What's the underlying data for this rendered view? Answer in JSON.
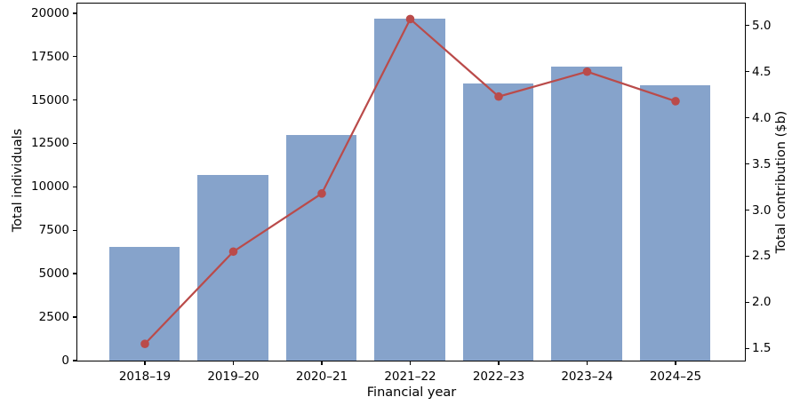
{
  "figure": {
    "background": "#ffffff",
    "spine_color": "#000000",
    "text_color": "#000000"
  },
  "chart_data": {
    "type": "bar",
    "subtype": "dual-axis bar + line combo",
    "title": "",
    "xlabel": "Financial year",
    "ylabel_left": "Total individuals",
    "ylabel_right": "Total contribution ($b)",
    "grid": false,
    "legend": "none",
    "categories": [
      "2018–19",
      "2019–20",
      "2020–21",
      "2021–22",
      "2022–23",
      "2023–24",
      "2024–25"
    ],
    "series": [
      {
        "name": "Total individuals",
        "type": "bar",
        "axis": "left",
        "color": "#86a3cb",
        "values": [
          6500,
          10650,
          12950,
          19650,
          15900,
          16900,
          15800
        ]
      },
      {
        "name": "Total contribution ($b)",
        "type": "line",
        "axis": "right",
        "color": "#ba4b4a",
        "marker": "circle",
        "values": [
          1.55,
          2.55,
          3.18,
          5.07,
          4.23,
          4.5,
          4.18
        ]
      }
    ],
    "left_axis": {
      "ticks": [
        0,
        2500,
        5000,
        7500,
        10000,
        12500,
        15000,
        17500,
        20000
      ],
      "min": 0,
      "max": 20550
    },
    "right_axis": {
      "ticks": [
        1.5,
        2.0,
        2.5,
        3.0,
        3.5,
        4.0,
        4.5,
        5.0
      ],
      "min": 1.369,
      "max": 5.238,
      "decimals": 1
    }
  }
}
